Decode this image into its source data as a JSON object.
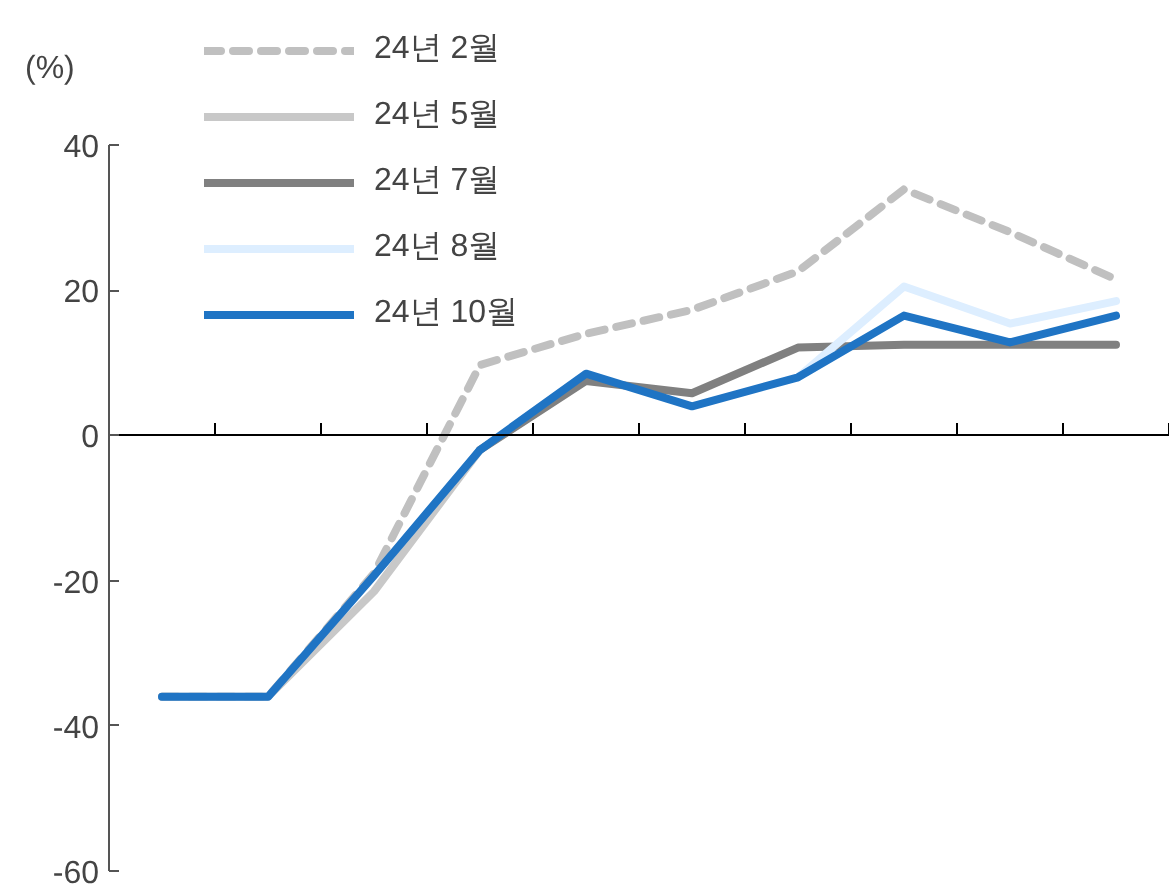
{
  "chart_data": {
    "type": "line",
    "ylabel": "(%)",
    "categories": [
      null,
      null,
      null,
      null,
      null,
      null,
      null,
      null,
      null,
      null
    ],
    "ylim": [
      -60,
      40
    ],
    "yticks": [
      -60,
      -40,
      -20,
      0,
      20,
      40
    ],
    "legend": "top left",
    "series": [
      {
        "name": "24년 2월",
        "color": "#c0c0c0",
        "line_style": "dashed",
        "values": [
          -36,
          -36,
          -19,
          9.7,
          14,
          17.3,
          22.6,
          33.9,
          28,
          21.5
        ]
      },
      {
        "name": "24년 5월",
        "color": "#c8c8c8",
        "values": [
          -36,
          -36,
          -21.5,
          -2,
          null,
          null,
          null,
          null,
          null,
          null
        ]
      },
      {
        "name": "24년 7월",
        "color": "#808080",
        "values": [
          null,
          null,
          null,
          -2,
          7.5,
          5.8,
          12.1,
          12.5,
          12.5,
          12.5
        ]
      },
      {
        "name": "24년 8월",
        "color": "#ddeeff",
        "values": [
          null,
          null,
          null,
          null,
          null,
          null,
          8,
          20.5,
          15.4,
          18.5
        ]
      },
      {
        "name": "24년 10월",
        "color": "#1f74c4",
        "values": [
          -36,
          -36,
          -19.3,
          -2,
          8.5,
          4,
          8,
          16.5,
          12.8,
          16.5
        ]
      }
    ]
  }
}
